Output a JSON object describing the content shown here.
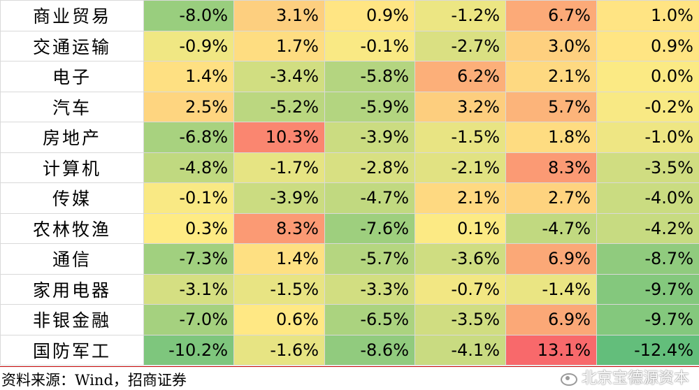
{
  "chart_data": {
    "type": "heatmap",
    "rows": [
      "商业贸易",
      "交通运输",
      "电子",
      "汽车",
      "房地产",
      "计算机",
      "传媒",
      "农林牧渔",
      "通信",
      "家用电器",
      "非银金融",
      "国防军工"
    ],
    "values": [
      [
        -8.0,
        3.1,
        0.9,
        -1.2,
        6.7,
        1.0
      ],
      [
        -0.9,
        1.7,
        -0.1,
        -2.7,
        3.0,
        0.9
      ],
      [
        1.4,
        -3.4,
        -5.8,
        6.2,
        2.1,
        0.0
      ],
      [
        2.5,
        -5.2,
        -5.9,
        3.2,
        5.7,
        -0.2
      ],
      [
        -6.8,
        10.3,
        -3.9,
        -1.5,
        1.8,
        -1.0
      ],
      [
        -4.8,
        -1.7,
        -2.8,
        -2.1,
        8.3,
        -3.5
      ],
      [
        -0.1,
        -3.9,
        -4.7,
        2.1,
        2.7,
        -4.0
      ],
      [
        0.3,
        8.3,
        -7.6,
        0.1,
        -4.7,
        -4.2
      ],
      [
        -7.3,
        1.4,
        -5.7,
        -3.6,
        6.9,
        -8.7
      ],
      [
        -3.1,
        -1.5,
        -3.3,
        -0.7,
        -1.4,
        -9.7
      ],
      [
        -7.0,
        0.6,
        -6.5,
        -3.5,
        6.9,
        -9.7
      ],
      [
        -10.2,
        -1.6,
        -8.6,
        -4.1,
        13.1,
        -12.4
      ]
    ],
    "labels": [
      [
        "-8.0%",
        "3.1%",
        "0.9%",
        "-1.2%",
        "6.7%",
        "1.0%"
      ],
      [
        "-0.9%",
        "1.7%",
        "-0.1%",
        "-2.7%",
        "3.0%",
        "0.9%"
      ],
      [
        "1.4%",
        "-3.4%",
        "-5.8%",
        "6.2%",
        "2.1%",
        "0.0%"
      ],
      [
        "2.5%",
        "-5.2%",
        "-5.9%",
        "3.2%",
        "5.7%",
        "-0.2%"
      ],
      [
        "-6.8%",
        "10.3%",
        "-3.9%",
        "-1.5%",
        "1.8%",
        "-1.0%"
      ],
      [
        "-4.8%",
        "-1.7%",
        "-2.8%",
        "-2.1%",
        "8.3%",
        "-3.5%"
      ],
      [
        "-0.1%",
        "-3.9%",
        "-4.7%",
        "2.1%",
        "2.7%",
        "-4.0%"
      ],
      [
        "0.3%",
        "8.3%",
        "-7.6%",
        "0.1%",
        "-4.7%",
        "-4.2%"
      ],
      [
        "-7.3%",
        "1.4%",
        "-5.7%",
        "-3.6%",
        "6.9%",
        "-8.7%"
      ],
      [
        "-3.1%",
        "-1.5%",
        "-3.3%",
        "-0.7%",
        "-1.4%",
        "-9.7%"
      ],
      [
        "-7.0%",
        "0.6%",
        "-6.5%",
        "-3.5%",
        "6.9%",
        "-9.7%"
      ],
      [
        "-10.2%",
        "-1.6%",
        "-8.6%",
        "-4.1%",
        "13.1%",
        "-12.4%"
      ]
    ],
    "color_scale": {
      "low": "#63be7b",
      "mid": "#ffeb84",
      "high": "#f8696b",
      "range": [
        -12.4,
        13.1
      ]
    },
    "grid": true
  },
  "source": "资料来源：Wind，招商证券",
  "watermark": "北京宝德源资本"
}
